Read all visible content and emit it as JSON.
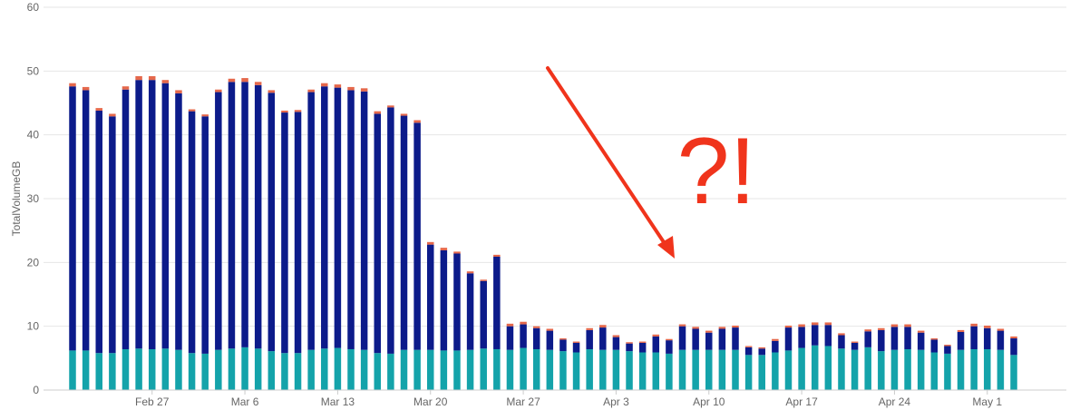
{
  "chart_data": {
    "type": "bar",
    "stacked": true,
    "ylabel": "TotalVolumeGB",
    "ylim": [
      0,
      60
    ],
    "yticks": [
      0,
      10,
      20,
      30,
      40,
      50,
      60
    ],
    "grid": true,
    "legend": "none",
    "x_start": "2025-02-21",
    "xtick_labels": [
      {
        "date": "2025-02-27",
        "label": "Feb 27"
      },
      {
        "date": "2025-03-06",
        "label": "Mar 6"
      },
      {
        "date": "2025-03-13",
        "label": "Mar 13"
      },
      {
        "date": "2025-03-20",
        "label": "Mar 20"
      },
      {
        "date": "2025-03-27",
        "label": "Mar 27"
      },
      {
        "date": "2025-04-03",
        "label": "Apr 3"
      },
      {
        "date": "2025-04-10",
        "label": "Apr 10"
      },
      {
        "date": "2025-04-17",
        "label": "Apr 17"
      },
      {
        "date": "2025-04-24",
        "label": "Apr 24"
      },
      {
        "date": "2025-05-01",
        "label": "May 1"
      }
    ],
    "series": [
      {
        "color": "#14a3aa",
        "values": [
          6.2,
          6.2,
          5.8,
          5.8,
          6.4,
          6.5,
          6.4,
          6.5,
          6.3,
          5.8,
          5.7,
          6.3,
          6.5,
          6.7,
          6.5,
          6.1,
          5.8,
          5.8,
          6.3,
          6.5,
          6.6,
          6.4,
          6.3,
          5.8,
          5.7,
          6.3,
          6.3,
          6.3,
          6.2,
          6.2,
          6.3,
          6.5,
          6.4,
          6.3,
          6.6,
          6.4,
          6.3,
          6.1,
          5.9,
          6.4,
          6.3,
          6.3,
          6.1,
          5.9,
          5.9,
          5.7,
          6.3,
          6.3,
          6.3,
          6.3,
          6.3,
          5.5,
          5.5,
          5.9,
          6.2,
          6.6,
          7.0,
          6.9,
          6.5,
          6.3,
          6.7,
          6.1,
          6.3,
          6.4,
          6.3,
          5.9,
          5.7,
          6.3,
          6.4,
          6.4,
          6.3,
          5.5
        ]
      },
      {
        "color": "#0c1b8a",
        "values": [
          41.4,
          40.8,
          38.0,
          37.1,
          40.7,
          42.1,
          42.2,
          41.6,
          40.2,
          37.9,
          37.2,
          40.4,
          41.8,
          41.6,
          41.3,
          40.5,
          37.7,
          37.8,
          40.4,
          41.1,
          40.8,
          40.6,
          40.5,
          37.5,
          38.6,
          36.7,
          35.6,
          16.5,
          15.7,
          15.2,
          12.0,
          10.6,
          14.5,
          3.7,
          3.7,
          3.3,
          3.0,
          1.8,
          1.5,
          3.0,
          3.5,
          2.0,
          1.2,
          1.5,
          2.5,
          2.1,
          3.7,
          3.3,
          2.7,
          3.3,
          3.5,
          1.2,
          1.0,
          1.8,
          3.6,
          3.3,
          3.2,
          3.3,
          2.1,
          1.1,
          2.5,
          3.3,
          3.6,
          3.5,
          2.7,
          2.0,
          1.2,
          2.8,
          3.6,
          3.3,
          3.0,
          2.6
        ]
      },
      {
        "color": "#e5684b",
        "values": [
          0.5,
          0.5,
          0.4,
          0.4,
          0.5,
          0.6,
          0.6,
          0.5,
          0.5,
          0.3,
          0.3,
          0.4,
          0.5,
          0.6,
          0.5,
          0.4,
          0.3,
          0.3,
          0.4,
          0.5,
          0.5,
          0.5,
          0.5,
          0.4,
          0.3,
          0.3,
          0.4,
          0.4,
          0.4,
          0.3,
          0.3,
          0.2,
          0.3,
          0.4,
          0.4,
          0.3,
          0.3,
          0.2,
          0.2,
          0.3,
          0.4,
          0.3,
          0.2,
          0.2,
          0.3,
          0.2,
          0.3,
          0.3,
          0.3,
          0.3,
          0.3,
          0.2,
          0.2,
          0.3,
          0.3,
          0.4,
          0.4,
          0.4,
          0.3,
          0.2,
          0.3,
          0.3,
          0.4,
          0.4,
          0.3,
          0.2,
          0.2,
          0.3,
          0.4,
          0.4,
          0.3,
          0.3
        ]
      }
    ],
    "annotations": [
      {
        "type": "arrow",
        "color": "#f0341c"
      },
      {
        "type": "text",
        "text": "?!",
        "color": "#f0341c"
      }
    ]
  }
}
